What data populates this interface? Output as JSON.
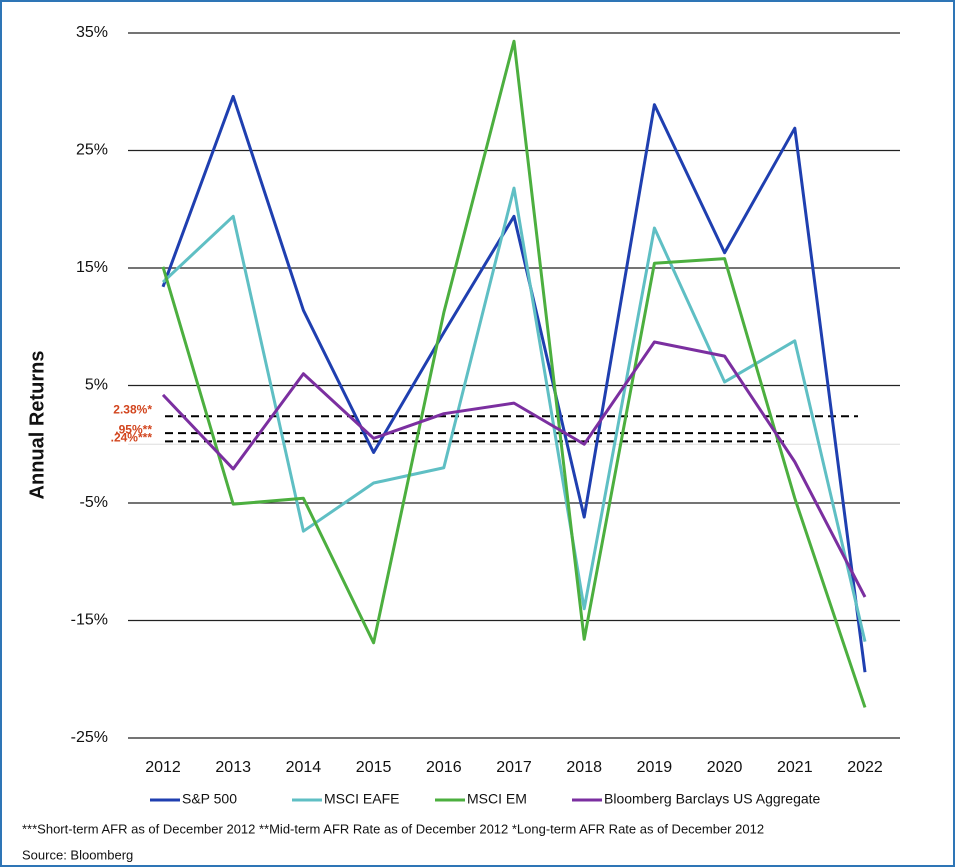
{
  "chart_data": {
    "type": "line",
    "y_label": "Annual Returns",
    "categories": [
      "2012",
      "2013",
      "2014",
      "2015",
      "2016",
      "2017",
      "2018",
      "2019",
      "2020",
      "2021",
      "2022"
    ],
    "series": [
      {
        "name": "S&P 500",
        "color": "#1f3fb0",
        "values": [
          13.4,
          29.6,
          11.4,
          -0.7,
          9.5,
          19.4,
          -6.2,
          28.9,
          16.3,
          26.9,
          -19.4
        ]
      },
      {
        "name": "MSCI EAFE",
        "color": "#5fbfc4",
        "values": [
          13.8,
          19.4,
          -7.4,
          -3.3,
          -2.0,
          21.8,
          -14.0,
          18.4,
          5.3,
          8.8,
          -16.8
        ]
      },
      {
        "name": "MSCI EM",
        "color": "#4caf3f",
        "values": [
          15.1,
          -5.1,
          -4.6,
          -16.9,
          11.2,
          34.3,
          -16.6,
          15.4,
          15.8,
          -4.6,
          -22.4
        ]
      },
      {
        "name": "Bloomberg Barclays US Aggregate",
        "color": "#7b2fa0",
        "values": [
          4.2,
          -2.1,
          6.0,
          0.5,
          2.6,
          3.5,
          0.0,
          8.7,
          7.5,
          -1.5,
          -13.0
        ]
      }
    ],
    "reference_lines": [
      {
        "value": 2.38,
        "label": "2.38%*"
      },
      {
        "value": 0.95,
        "label": ".95%**"
      },
      {
        "value": 0.24,
        "label": ".24%***"
      }
    ],
    "ylim": [
      -25,
      35
    ],
    "yticks": [
      {
        "value": -25,
        "label": "-25%"
      },
      {
        "value": -15,
        "label": "-15%"
      },
      {
        "value": -5,
        "label": "-5%"
      },
      {
        "value": 5,
        "label": "5%"
      },
      {
        "value": 15,
        "label": "15%"
      },
      {
        "value": 25,
        "label": "25%"
      },
      {
        "value": 35,
        "label": "35%"
      }
    ],
    "grid": true,
    "footnote": "***Short-term AFR as of December 2012 **Mid-term AFR Rate as of December 2012 *Long-term AFR Rate as of December 2012",
    "source": "Source: Bloomberg"
  }
}
